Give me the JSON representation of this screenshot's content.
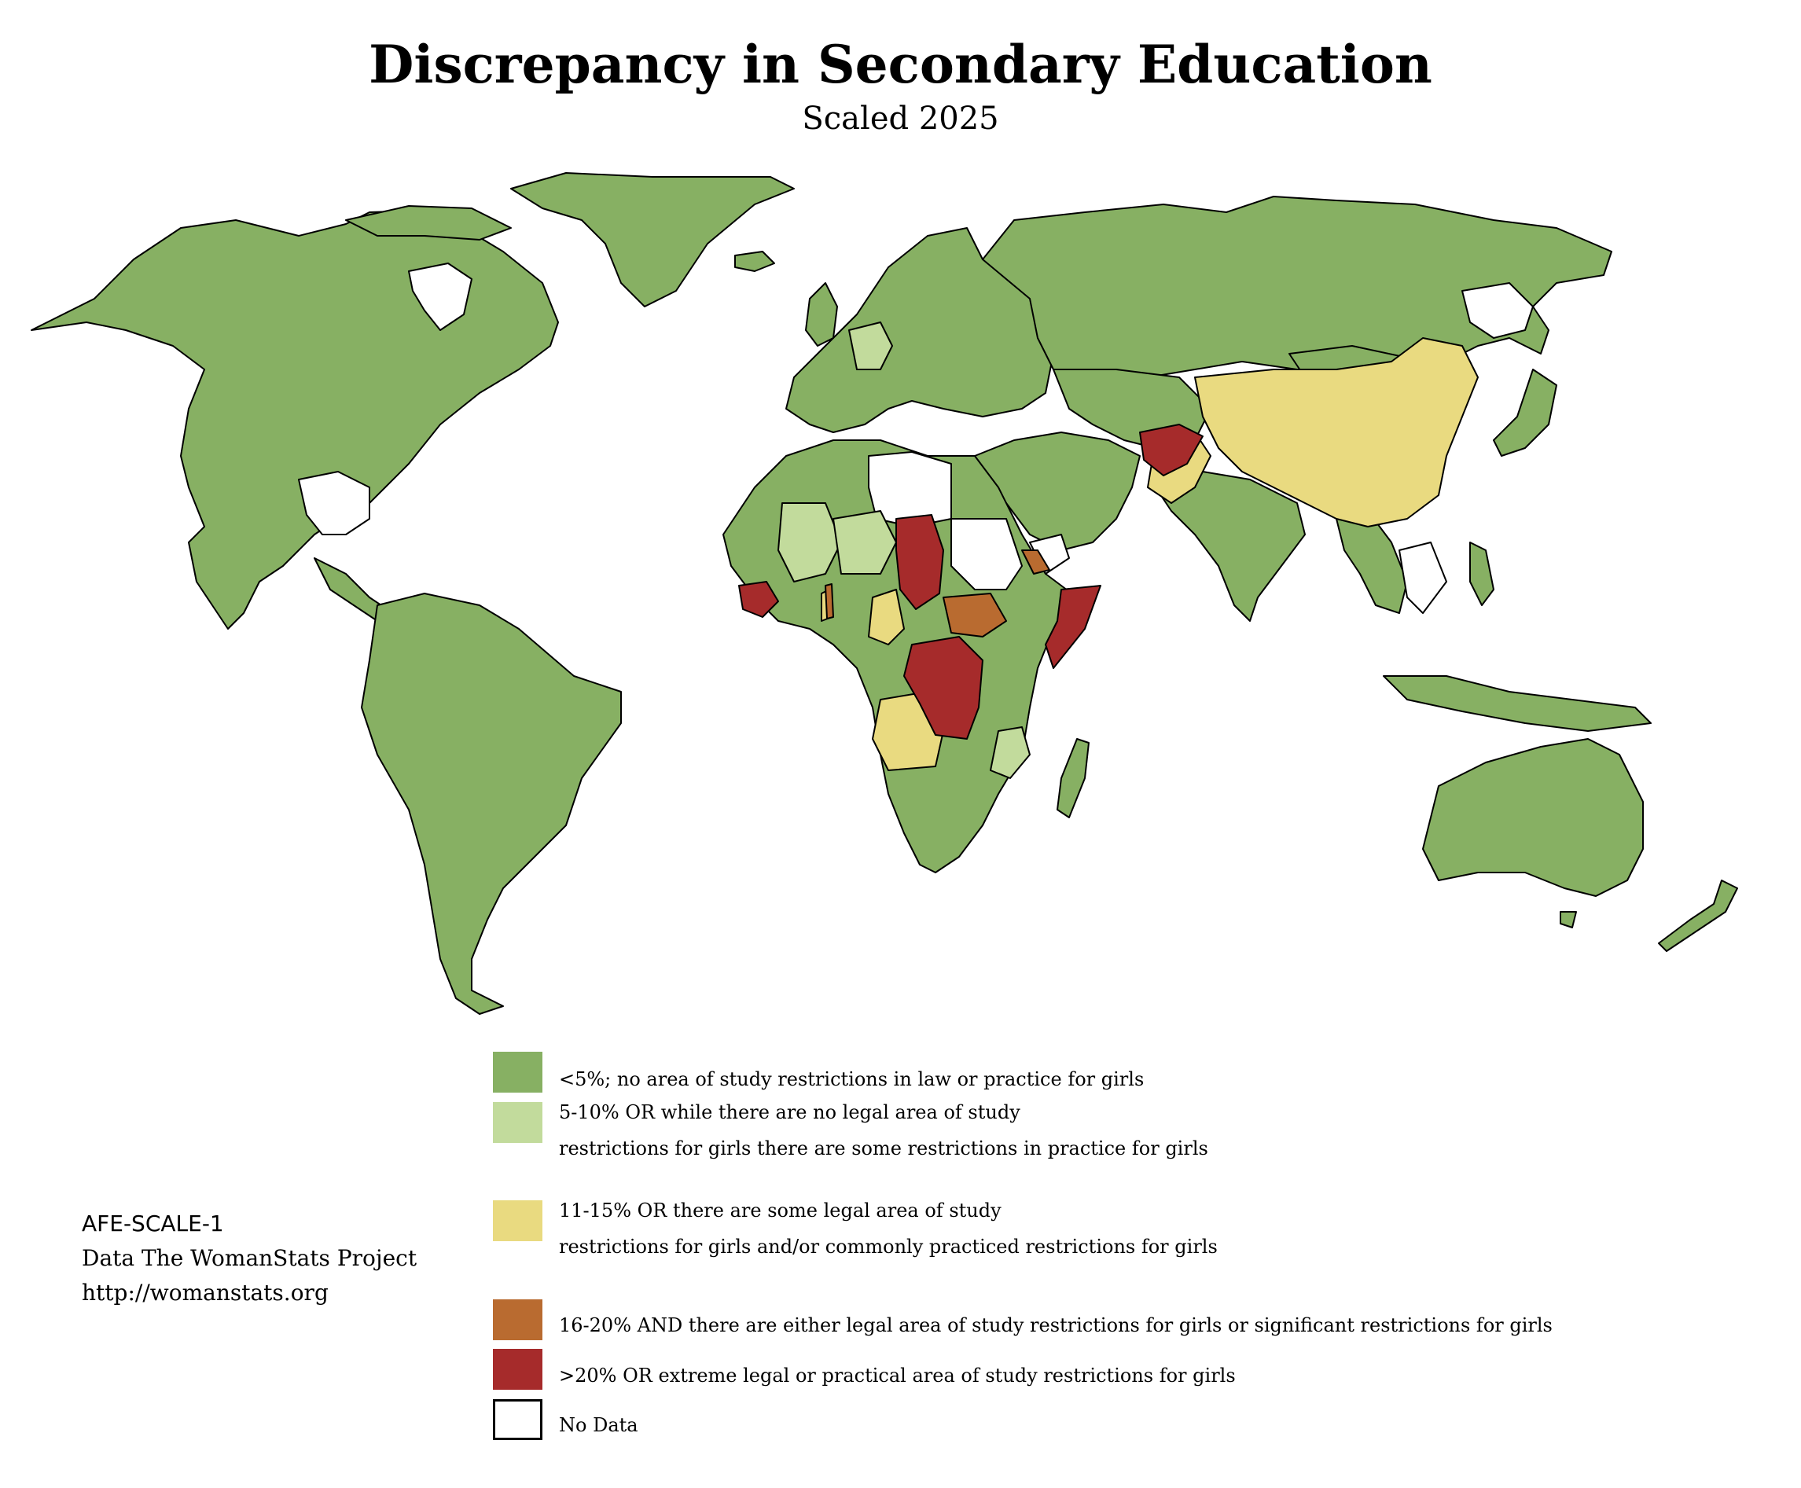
{
  "title": "Discrepancy in Secondary Education",
  "subtitle": "Scaled 2025",
  "colors": {
    "level1": "#87b063",
    "level2": "#c2db9c",
    "level3": "#e9da80",
    "level4": "#b96b30",
    "level5": "#a62b2b",
    "nodata": "#ffffff",
    "border": "#000000"
  },
  "legend": [
    {
      "color": "#87b063",
      "line1": "<5%; no area of study restrictions in law or practice for girls",
      "line2": ""
    },
    {
      "color": "#c2db9c",
      "line1": "5-10% OR while there are no legal area of study",
      "line2": "restrictions for girls there are some restrictions in practice for girls"
    },
    {
      "color": "#e9da80",
      "line1": "11-15% OR there are some legal area of study",
      "line2": "restrictions for girls and/or commonly practiced restrictions for girls"
    },
    {
      "color": "#b96b30",
      "line1": "16-20% AND there are either legal area of study restrictions for girls or significant restrictions for girls",
      "line2": ""
    },
    {
      "color": "#a62b2b",
      "line1": ">20% OR extreme legal or practical area of study restrictions for girls",
      "line2": ""
    },
    {
      "color": "#ffffff",
      "line1": "No Data",
      "line2": ""
    }
  ],
  "credits": {
    "code": "AFE-SCALE-1",
    "source": "Data The WomanStats Project",
    "url": "http://womanstats.org"
  }
}
